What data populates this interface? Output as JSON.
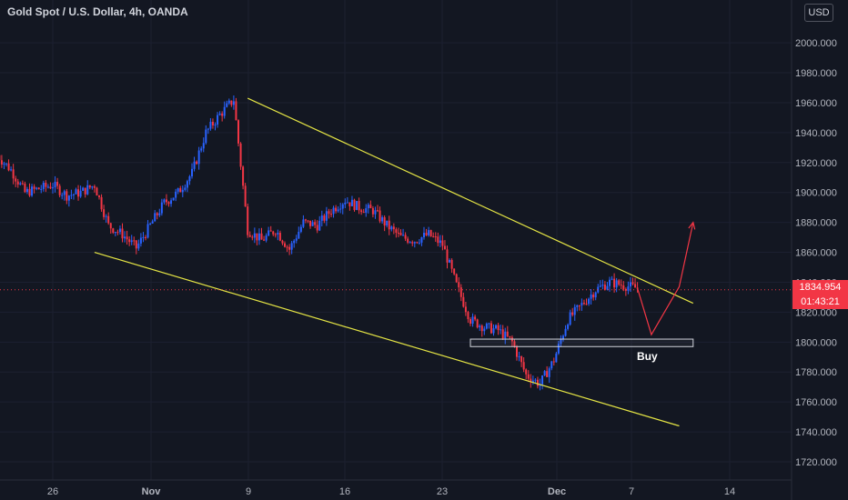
{
  "header": {
    "title": "Gold Spot / U.S. Dollar, 4h, OANDA",
    "currency": "USD"
  },
  "price_scale": {
    "current_price": "1834.954",
    "countdown": "01:43:21"
  },
  "colors": {
    "background": "#131722",
    "up_candle": "#2962ff",
    "down_candle": "#f23645",
    "trendline": "#e5e545",
    "projection": "#f23645",
    "axis_text": "#b2b5be"
  },
  "chart_data": {
    "type": "candlestick",
    "symbol": "Gold Spot / U.S. Dollar",
    "timeframe": "4h",
    "source": "OANDA",
    "y_ticks": [
      "1720.000",
      "1740.000",
      "1760.000",
      "1780.000",
      "1800.000",
      "1820.000",
      "1840.000",
      "1860.000",
      "1880.000",
      "1900.000",
      "1920.000",
      "1940.000",
      "1960.000",
      "1980.000",
      "2000.000"
    ],
    "x_ticks": [
      "26",
      "Nov",
      "9",
      "16",
      "23",
      "Dec",
      "7",
      "14"
    ],
    "ylim": [
      1712,
      2025
    ],
    "path_points": [
      [
        "Oct 22",
        1925
      ],
      [
        "Oct 23",
        1915
      ],
      [
        "Oct 24",
        1900
      ],
      [
        "Oct 26",
        1905
      ],
      [
        "Oct 27",
        1898
      ],
      [
        "Oct 28",
        1900
      ],
      [
        "Oct 29",
        1905
      ],
      [
        "Oct 30",
        1878
      ],
      [
        "Oct 31",
        1872
      ],
      [
        "Nov 1",
        1863
      ],
      [
        "Nov 2",
        1878
      ],
      [
        "Nov 3",
        1893
      ],
      [
        "Nov 4",
        1900
      ],
      [
        "Nov 5",
        1913
      ],
      [
        "Nov 6",
        1940
      ],
      [
        "Nov 7",
        1952
      ],
      [
        "Nov 8",
        1962
      ],
      [
        "Nov 9",
        1875
      ],
      [
        "Nov 10",
        1868
      ],
      [
        "Nov 11",
        1875
      ],
      [
        "Nov 12",
        1862
      ],
      [
        "Nov 13",
        1880
      ],
      [
        "Nov 14",
        1878
      ],
      [
        "Nov 15",
        1888
      ],
      [
        "Nov 16",
        1895
      ],
      [
        "Nov 17",
        1890
      ],
      [
        "Nov 18",
        1888
      ],
      [
        "Nov 19",
        1878
      ],
      [
        "Nov 20",
        1870
      ],
      [
        "Nov 21",
        1868
      ],
      [
        "Nov 22",
        1872
      ],
      [
        "Nov 23",
        1865
      ],
      [
        "Nov 24",
        1838
      ],
      [
        "Nov 25",
        1815
      ],
      [
        "Nov 26",
        1810
      ],
      [
        "Nov 27",
        1808
      ],
      [
        "Nov 28",
        1800
      ],
      [
        "Nov 29",
        1778
      ],
      [
        "Nov 30",
        1772
      ],
      [
        "Dec 1",
        1788
      ],
      [
        "Dec 2",
        1815
      ],
      [
        "Dec 3",
        1825
      ],
      [
        "Dec 4",
        1835
      ],
      [
        "Dec 5",
        1840
      ],
      [
        "Dec 6",
        1838
      ],
      [
        "Dec 7",
        1836
      ]
    ],
    "annotations": {
      "upper_trendline": [
        [
          "Nov 9",
          1963
        ],
        [
          "Dec 11",
          1826
        ]
      ],
      "lower_trendline": [
        [
          "Oct 29",
          1860
        ],
        [
          "Dec 10",
          1744
        ]
      ],
      "buy_zone": {
        "x": [
          "Nov 25",
          "Dec 11"
        ],
        "y": [
          1797,
          1802
        ],
        "label": "Buy"
      },
      "projection": [
        [
          "Dec 7",
          1836
        ],
        [
          "Dec 8",
          1805
        ],
        [
          "Dec 10",
          1837
        ],
        [
          "Dec 11",
          1880
        ]
      ]
    }
  }
}
